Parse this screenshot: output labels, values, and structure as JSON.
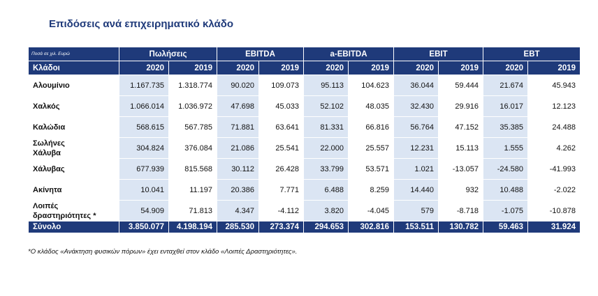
{
  "title": "Επιδόσεις ανά επιχειρηματικό κλάδο",
  "unit_label": "Ποσά σε χιλ. Ευρώ",
  "groups": [
    "Πωλήσεις",
    "EBITDA",
    "a-EBITDA",
    "EBIT",
    "EBT"
  ],
  "sector_header": "Κλάδοι",
  "years": [
    "2020",
    "2019",
    "2020",
    "2019",
    "2020",
    "2019",
    "2020",
    "2019",
    "2020",
    "2019"
  ],
  "rows": [
    {
      "label_lines": [
        "Αλουμίνιο"
      ],
      "values": [
        "1.167.735",
        "1.318.774",
        "90.020",
        "109.073",
        "95.113",
        "104.623",
        "36.044",
        "59.444",
        "21.674",
        "45.943"
      ]
    },
    {
      "label_lines": [
        "Χαλκός"
      ],
      "values": [
        "1.066.014",
        "1.036.972",
        "47.698",
        "45.033",
        "52.102",
        "48.035",
        "32.430",
        "29.916",
        "16.017",
        "12.123"
      ]
    },
    {
      "label_lines": [
        "Καλώδια"
      ],
      "values": [
        "568.615",
        "567.785",
        "71.881",
        "63.641",
        "81.331",
        "66.816",
        "56.764",
        "47.152",
        "35.385",
        "24.488"
      ]
    },
    {
      "label_lines": [
        "Σωλήνες",
        "Χάλυβα"
      ],
      "values": [
        "304.824",
        "376.084",
        "21.086",
        "25.541",
        "22.000",
        "25.557",
        "12.231",
        "15.113",
        "1.555",
        "4.262"
      ]
    },
    {
      "label_lines": [
        "Χάλυβας"
      ],
      "values": [
        "677.939",
        "815.568",
        "30.112",
        "26.428",
        "33.799",
        "53.571",
        "1.021",
        "-13.057",
        "-24.580",
        "-41.993"
      ]
    },
    {
      "label_lines": [
        "Ακίνητα"
      ],
      "values": [
        "10.041",
        "11.197",
        "20.386",
        "7.771",
        "6.488",
        "8.259",
        "14.440",
        "932",
        "10.488",
        "-2.022"
      ]
    },
    {
      "label_lines": [
        "Λοιπές",
        "δραστηριότητες *"
      ],
      "values": [
        "54.909",
        "71.813",
        "4.347",
        "-4.112",
        "3.820",
        "-4.045",
        "579",
        "-8.718",
        "-1.075",
        "-10.878"
      ]
    }
  ],
  "total": {
    "label": "Σύνολο",
    "values": [
      "3.850.077",
      "4.198.194",
      "285.530",
      "273.374",
      "294.653",
      "302.816",
      "153.511",
      "130.782",
      "59.463",
      "31.924"
    ]
  },
  "footnote": "*Ο κλάδος «Ανάκτηση φυσικών πόρων» έχει ενταχθεί στον κλάδο «Λοιπές Δραστηριότητες».",
  "colors": {
    "header_bg": "#1f3a7a",
    "shaded_column": "#dbe5f3",
    "title": "#1f3a7a"
  }
}
